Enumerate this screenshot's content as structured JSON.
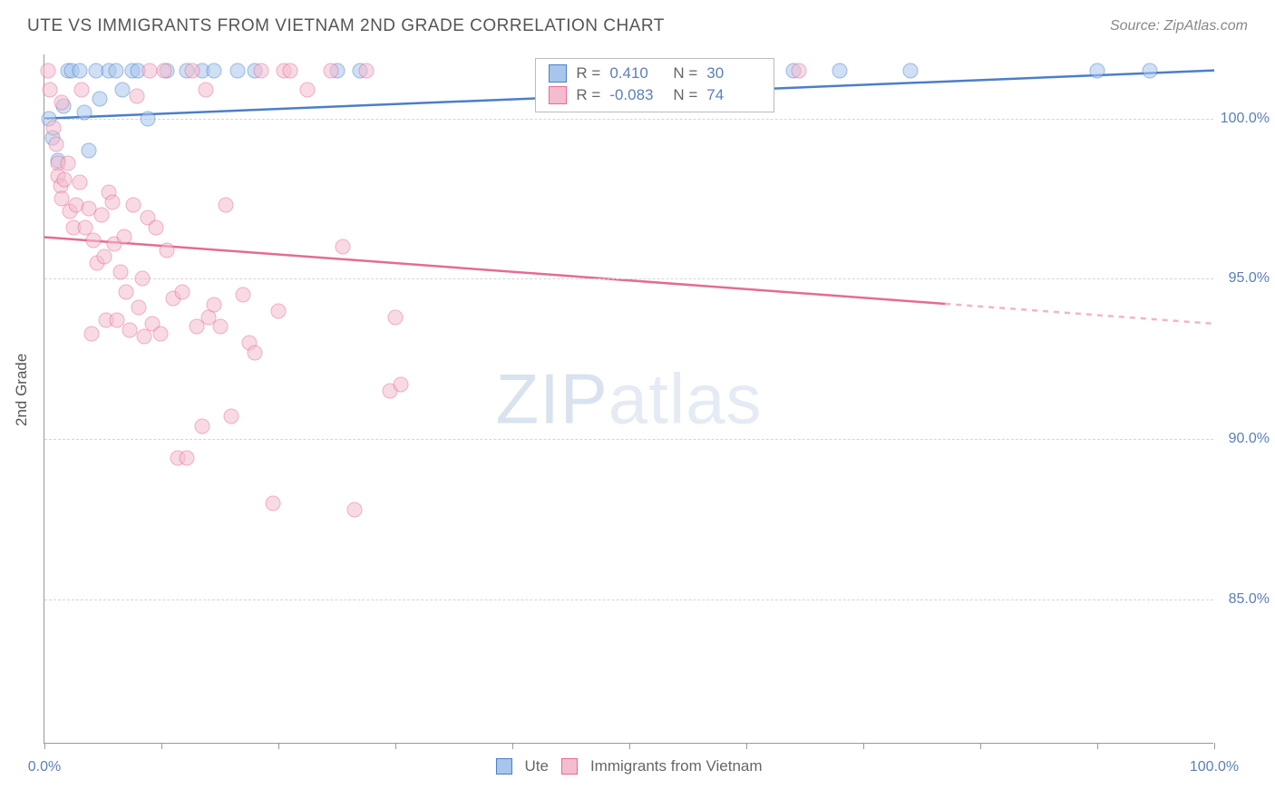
{
  "header": {
    "title": "UTE VS IMMIGRANTS FROM VIETNAM 2ND GRADE CORRELATION CHART",
    "source": "Source: ZipAtlas.com"
  },
  "watermark": {
    "bold": "ZIP",
    "light": "atlas"
  },
  "chart": {
    "type": "scatter",
    "y_axis_title": "2nd Grade",
    "background_color": "#ffffff",
    "grid_color": "#d6d6d6",
    "axis_color": "#999999",
    "tick_label_color": "#5b7fb8",
    "title_color": "#555555",
    "xlim": [
      0,
      100
    ],
    "ylim": [
      80.5,
      102
    ],
    "x_ticks": [
      0,
      10,
      20,
      30,
      40,
      50,
      60,
      70,
      80,
      90,
      100
    ],
    "x_tick_labels": {
      "0": "0.0%",
      "100": "100.0%"
    },
    "y_grid": [
      85.0,
      90.0,
      95.0,
      100.0
    ],
    "y_tick_labels": [
      "85.0%",
      "90.0%",
      "95.0%",
      "100.0%"
    ],
    "marker_diameter": 17,
    "marker_opacity": 0.55,
    "series": [
      {
        "name": "Ute",
        "color_fill": "#a8c6ec",
        "color_stroke": "#4b7fc9",
        "R": "0.410",
        "N": "30",
        "trend": {
          "x1": 0,
          "y1": 100.0,
          "x2": 100,
          "y2": 101.5,
          "width": 2.5,
          "dashed_from": null
        },
        "points": [
          [
            0.4,
            100.0
          ],
          [
            0.7,
            99.4
          ],
          [
            1.2,
            98.7
          ],
          [
            1.6,
            100.4
          ],
          [
            2.0,
            101.5
          ],
          [
            2.3,
            101.5
          ],
          [
            3.0,
            101.5
          ],
          [
            3.4,
            100.2
          ],
          [
            3.8,
            99.0
          ],
          [
            4.4,
            101.5
          ],
          [
            4.7,
            100.6
          ],
          [
            5.5,
            101.5
          ],
          [
            6.1,
            101.5
          ],
          [
            6.7,
            100.9
          ],
          [
            7.5,
            101.5
          ],
          [
            8.0,
            101.5
          ],
          [
            8.8,
            100.0
          ],
          [
            10.5,
            101.5
          ],
          [
            12.2,
            101.5
          ],
          [
            13.5,
            101.5
          ],
          [
            14.5,
            101.5
          ],
          [
            16.5,
            101.5
          ],
          [
            18.0,
            101.5
          ],
          [
            25.0,
            101.5
          ],
          [
            27.0,
            101.5
          ],
          [
            64.0,
            101.5
          ],
          [
            68.0,
            101.5
          ],
          [
            74.0,
            101.5
          ],
          [
            90.0,
            101.5
          ],
          [
            94.5,
            101.5
          ]
        ]
      },
      {
        "name": "Immigrants from Vietnam",
        "color_fill": "#f4bdcf",
        "color_stroke": "#e56b94",
        "R": "-0.083",
        "N": "74",
        "trend": {
          "x1": 0,
          "y1": 96.3,
          "x2": 100,
          "y2": 93.6,
          "width": 2.5,
          "dashed_from": 77
        },
        "points": [
          [
            0.3,
            101.5
          ],
          [
            0.5,
            100.9
          ],
          [
            0.8,
            99.7
          ],
          [
            1.0,
            99.2
          ],
          [
            1.2,
            98.6
          ],
          [
            1.2,
            98.2
          ],
          [
            1.4,
            97.9
          ],
          [
            1.5,
            97.5
          ],
          [
            1.5,
            100.5
          ],
          [
            1.7,
            98.1
          ],
          [
            2.0,
            98.6
          ],
          [
            2.2,
            97.1
          ],
          [
            2.5,
            96.6
          ],
          [
            2.7,
            97.3
          ],
          [
            3.0,
            98.0
          ],
          [
            3.2,
            100.9
          ],
          [
            3.5,
            96.6
          ],
          [
            3.8,
            97.2
          ],
          [
            4.0,
            93.3
          ],
          [
            4.2,
            96.2
          ],
          [
            4.5,
            95.5
          ],
          [
            4.9,
            97.0
          ],
          [
            5.1,
            95.7
          ],
          [
            5.3,
            93.7
          ],
          [
            5.5,
            97.7
          ],
          [
            5.8,
            97.4
          ],
          [
            6.0,
            96.1
          ],
          [
            6.2,
            93.7
          ],
          [
            6.5,
            95.2
          ],
          [
            6.8,
            96.3
          ],
          [
            7.0,
            94.6
          ],
          [
            7.3,
            93.4
          ],
          [
            7.6,
            97.3
          ],
          [
            7.9,
            100.7
          ],
          [
            8.1,
            94.1
          ],
          [
            8.4,
            95.0
          ],
          [
            8.5,
            93.2
          ],
          [
            8.8,
            96.9
          ],
          [
            9.0,
            101.5
          ],
          [
            9.2,
            93.6
          ],
          [
            9.5,
            96.6
          ],
          [
            9.9,
            93.3
          ],
          [
            10.2,
            101.5
          ],
          [
            10.5,
            95.9
          ],
          [
            11.0,
            94.4
          ],
          [
            11.4,
            89.4
          ],
          [
            11.8,
            94.6
          ],
          [
            12.2,
            89.4
          ],
          [
            12.6,
            101.5
          ],
          [
            13.0,
            93.5
          ],
          [
            13.5,
            90.4
          ],
          [
            13.8,
            100.9
          ],
          [
            14.0,
            93.8
          ],
          [
            14.5,
            94.2
          ],
          [
            15.0,
            93.5
          ],
          [
            15.5,
            97.3
          ],
          [
            16.0,
            90.7
          ],
          [
            17.0,
            94.5
          ],
          [
            17.5,
            93.0
          ],
          [
            18.0,
            92.7
          ],
          [
            18.5,
            101.5
          ],
          [
            19.5,
            88.0
          ],
          [
            20.0,
            94.0
          ],
          [
            20.5,
            101.5
          ],
          [
            21.0,
            101.5
          ],
          [
            22.5,
            100.9
          ],
          [
            24.5,
            101.5
          ],
          [
            25.5,
            96.0
          ],
          [
            26.5,
            87.8
          ],
          [
            27.5,
            101.5
          ],
          [
            29.5,
            91.5
          ],
          [
            30.0,
            93.8
          ],
          [
            30.5,
            91.7
          ],
          [
            64.5,
            101.5
          ]
        ]
      }
    ],
    "stats_legend": {
      "left_pct": 42,
      "top_pct": 0.5
    },
    "bottom_legend": [
      "Ute",
      "Immigrants from Vietnam"
    ]
  }
}
